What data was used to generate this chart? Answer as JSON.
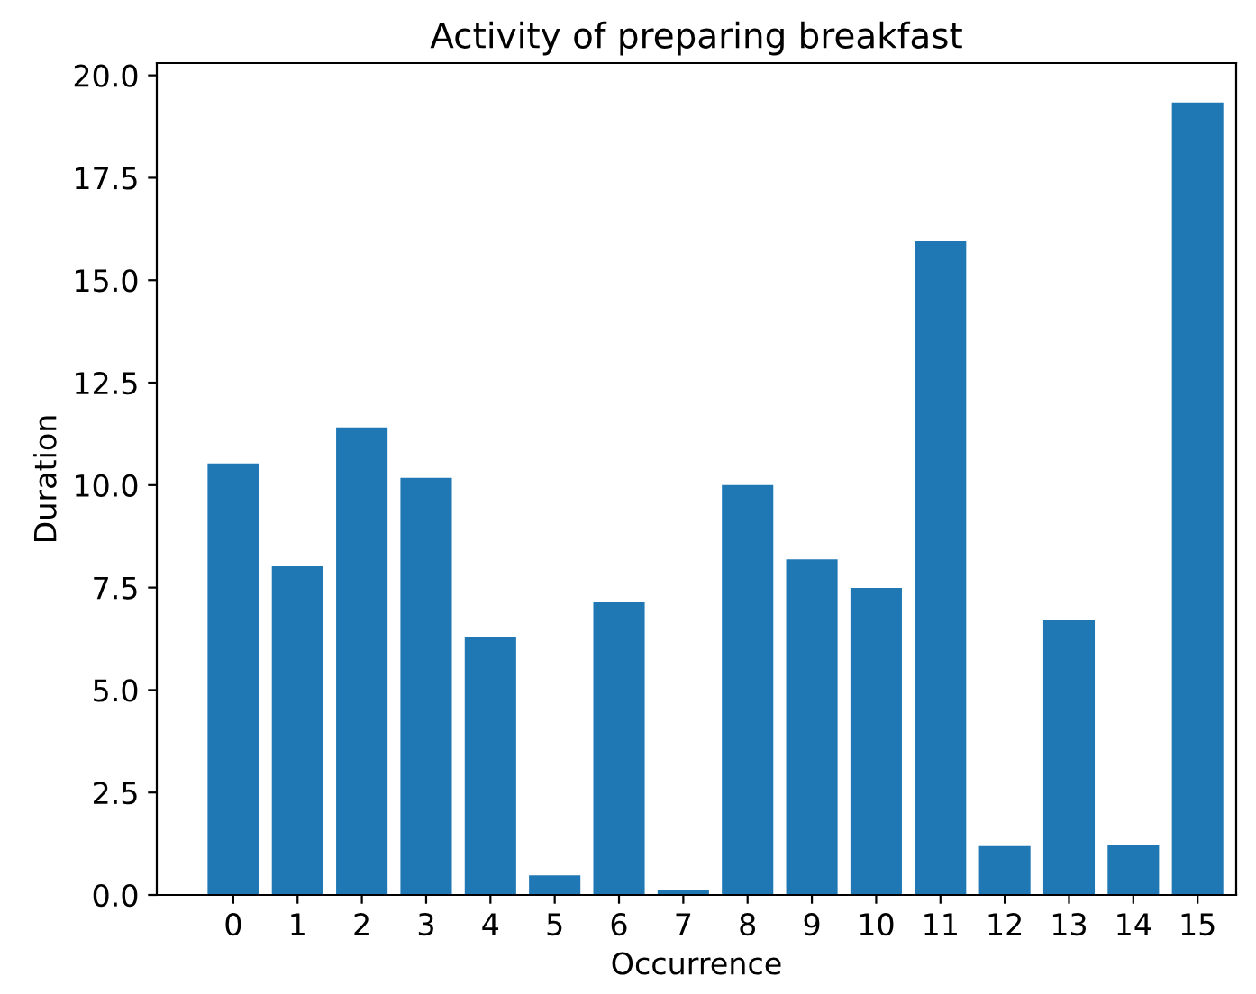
{
  "chart_data": {
    "type": "bar",
    "title": "Activity of preparing breakfast",
    "xlabel": "Occurrence",
    "ylabel": "Duration",
    "x": [
      0,
      1,
      2,
      3,
      4,
      5,
      6,
      7,
      8,
      9,
      10,
      11,
      12,
      13,
      14,
      15
    ],
    "values": [
      10.53,
      8.02,
      11.41,
      10.18,
      6.3,
      0.48,
      7.14,
      0.13,
      10.0,
      8.19,
      7.49,
      15.95,
      1.19,
      6.7,
      1.23,
      19.34
    ],
    "color": "#1f77b4",
    "xlim": [
      -1.19,
      15.6
    ],
    "xticks": [
      0,
      1,
      2,
      3,
      4,
      5,
      6,
      7,
      8,
      9,
      10,
      11,
      12,
      13,
      14,
      15
    ],
    "ylim": [
      0,
      20.3
    ],
    "yticks": [
      {
        "value": 0,
        "label": "0.0"
      },
      {
        "value": 2.5,
        "label": "2.5"
      },
      {
        "value": 5,
        "label": "5.0"
      },
      {
        "value": 7.5,
        "label": "7.5"
      },
      {
        "value": 10,
        "label": "10.0"
      },
      {
        "value": 12.5,
        "label": "12.5"
      },
      {
        "value": 15,
        "label": "15.0"
      },
      {
        "value": 17.5,
        "label": "17.5"
      },
      {
        "value": 20,
        "label": "20.0"
      }
    ],
    "grid": false
  }
}
